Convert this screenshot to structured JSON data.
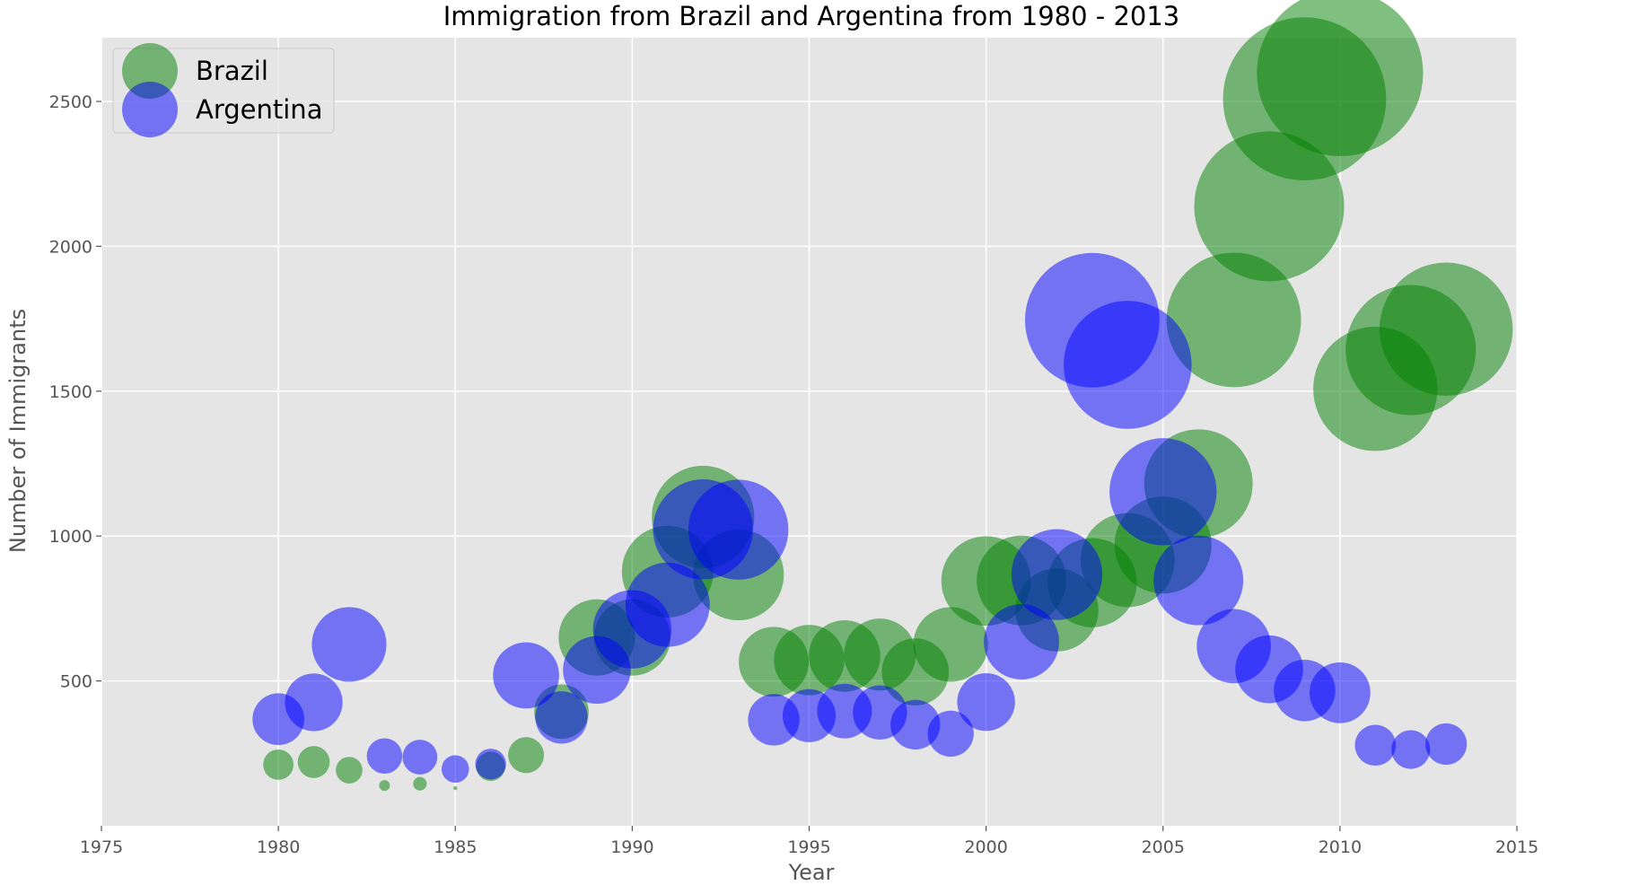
{
  "chart_data": {
    "type": "scatter",
    "title": "Immigration from Brazil and Argentina from 1980 - 2013",
    "xlabel": "Year",
    "ylabel": "Number of Immigrants",
    "xlim": [
      1975,
      2015
    ],
    "ylim": [
      0,
      2720
    ],
    "xticks": [
      1975,
      1980,
      1985,
      1990,
      1995,
      2000,
      2005,
      2010,
      2015
    ],
    "yticks": [
      500,
      1000,
      1500,
      2000,
      2500
    ],
    "grid": true,
    "legend_position": "top-left",
    "background": "#e5e5e5",
    "bubble_size_encodes": "value",
    "series": [
      {
        "name": "Brazil",
        "color": "#008000",
        "x": [
          1980,
          1981,
          1982,
          1983,
          1984,
          1985,
          1986,
          1987,
          1988,
          1989,
          1990,
          1991,
          1992,
          1993,
          1994,
          1995,
          1996,
          1997,
          1998,
          1999,
          2000,
          2001,
          2002,
          2003,
          2004,
          2005,
          2006,
          2007,
          2008,
          2009,
          2010,
          2011,
          2012,
          2013
        ],
        "values": [
          211,
          220,
          192,
          139,
          145,
          130,
          205,
          244,
          394,
          650,
          650,
          877,
          1066,
          866,
          566,
          572,
          586,
          591,
          531,
          626,
          845,
          847,
          745,
          839,
          917,
          969,
          1181,
          1746,
          2138,
          2509,
          2598,
          1508,
          1642,
          1714
        ]
      },
      {
        "name": "Argentina",
        "color": "#0000ff",
        "x": [
          1980,
          1981,
          1982,
          1983,
          1984,
          1985,
          1986,
          1987,
          1988,
          1989,
          1990,
          1991,
          1992,
          1993,
          1994,
          1995,
          1996,
          1997,
          1998,
          1999,
          2000,
          2001,
          2002,
          2003,
          2004,
          2005,
          2006,
          2007,
          2008,
          2009,
          2010,
          2011,
          2012,
          2013
        ],
        "values": [
          368,
          426,
          626,
          241,
          237,
          196,
          213,
          519,
          374,
          538,
          678,
          763,
          1023,
          1022,
          366,
          380,
          396,
          391,
          349,
          318,
          427,
          635,
          867,
          1745,
          1591,
          1153,
          847,
          620,
          540,
          467,
          459,
          278,
          263,
          282
        ]
      }
    ]
  }
}
